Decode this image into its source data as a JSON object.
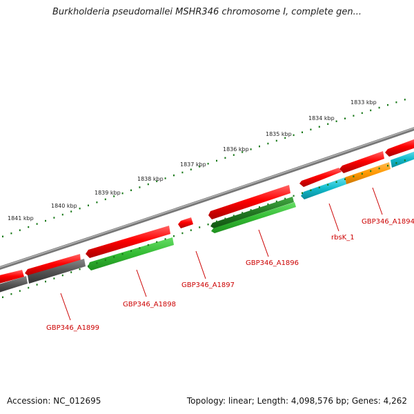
{
  "title": "Burkholderia pseudomallei MSHR346 chromosome I, complete gen...",
  "footer": {
    "accession": "Accession: NC_012695",
    "topology": "Topology: linear; Length: 4,098,576 bp; Genes: 4,262"
  },
  "ruler": {
    "labels": [
      "1841 kbp",
      "1840 kbp",
      "1839 kbp",
      "1838 kbp",
      "1837 kbp",
      "1836 kbp",
      "1835 kbp",
      "1834 kbp",
      "1833 kbp"
    ],
    "color": "#1a7a1a"
  },
  "genes": [
    {
      "name": "GBP346_A1899",
      "color": "#cc0000"
    },
    {
      "name": "GBP346_A1898",
      "color": "#cc0000"
    },
    {
      "name": "GBP346_A1897",
      "color": "#cc0000"
    },
    {
      "name": "GBP346_A1896",
      "color": "#cc0000"
    },
    {
      "name": "rbsK_1",
      "color": "#cc0000"
    },
    {
      "name": "GBP346_A1894",
      "color": "#cc0000"
    }
  ],
  "colors": {
    "forward_gene": "#ee1111",
    "reverse_gene": "#33bb33",
    "reverse_gene_dark": "#228822",
    "reverse_gene_gray": "#555555",
    "rbs_gene": "#11bbcc",
    "orange_gene": "#ff9900",
    "backbone": "#888888",
    "tick": "#1a7a1a"
  }
}
